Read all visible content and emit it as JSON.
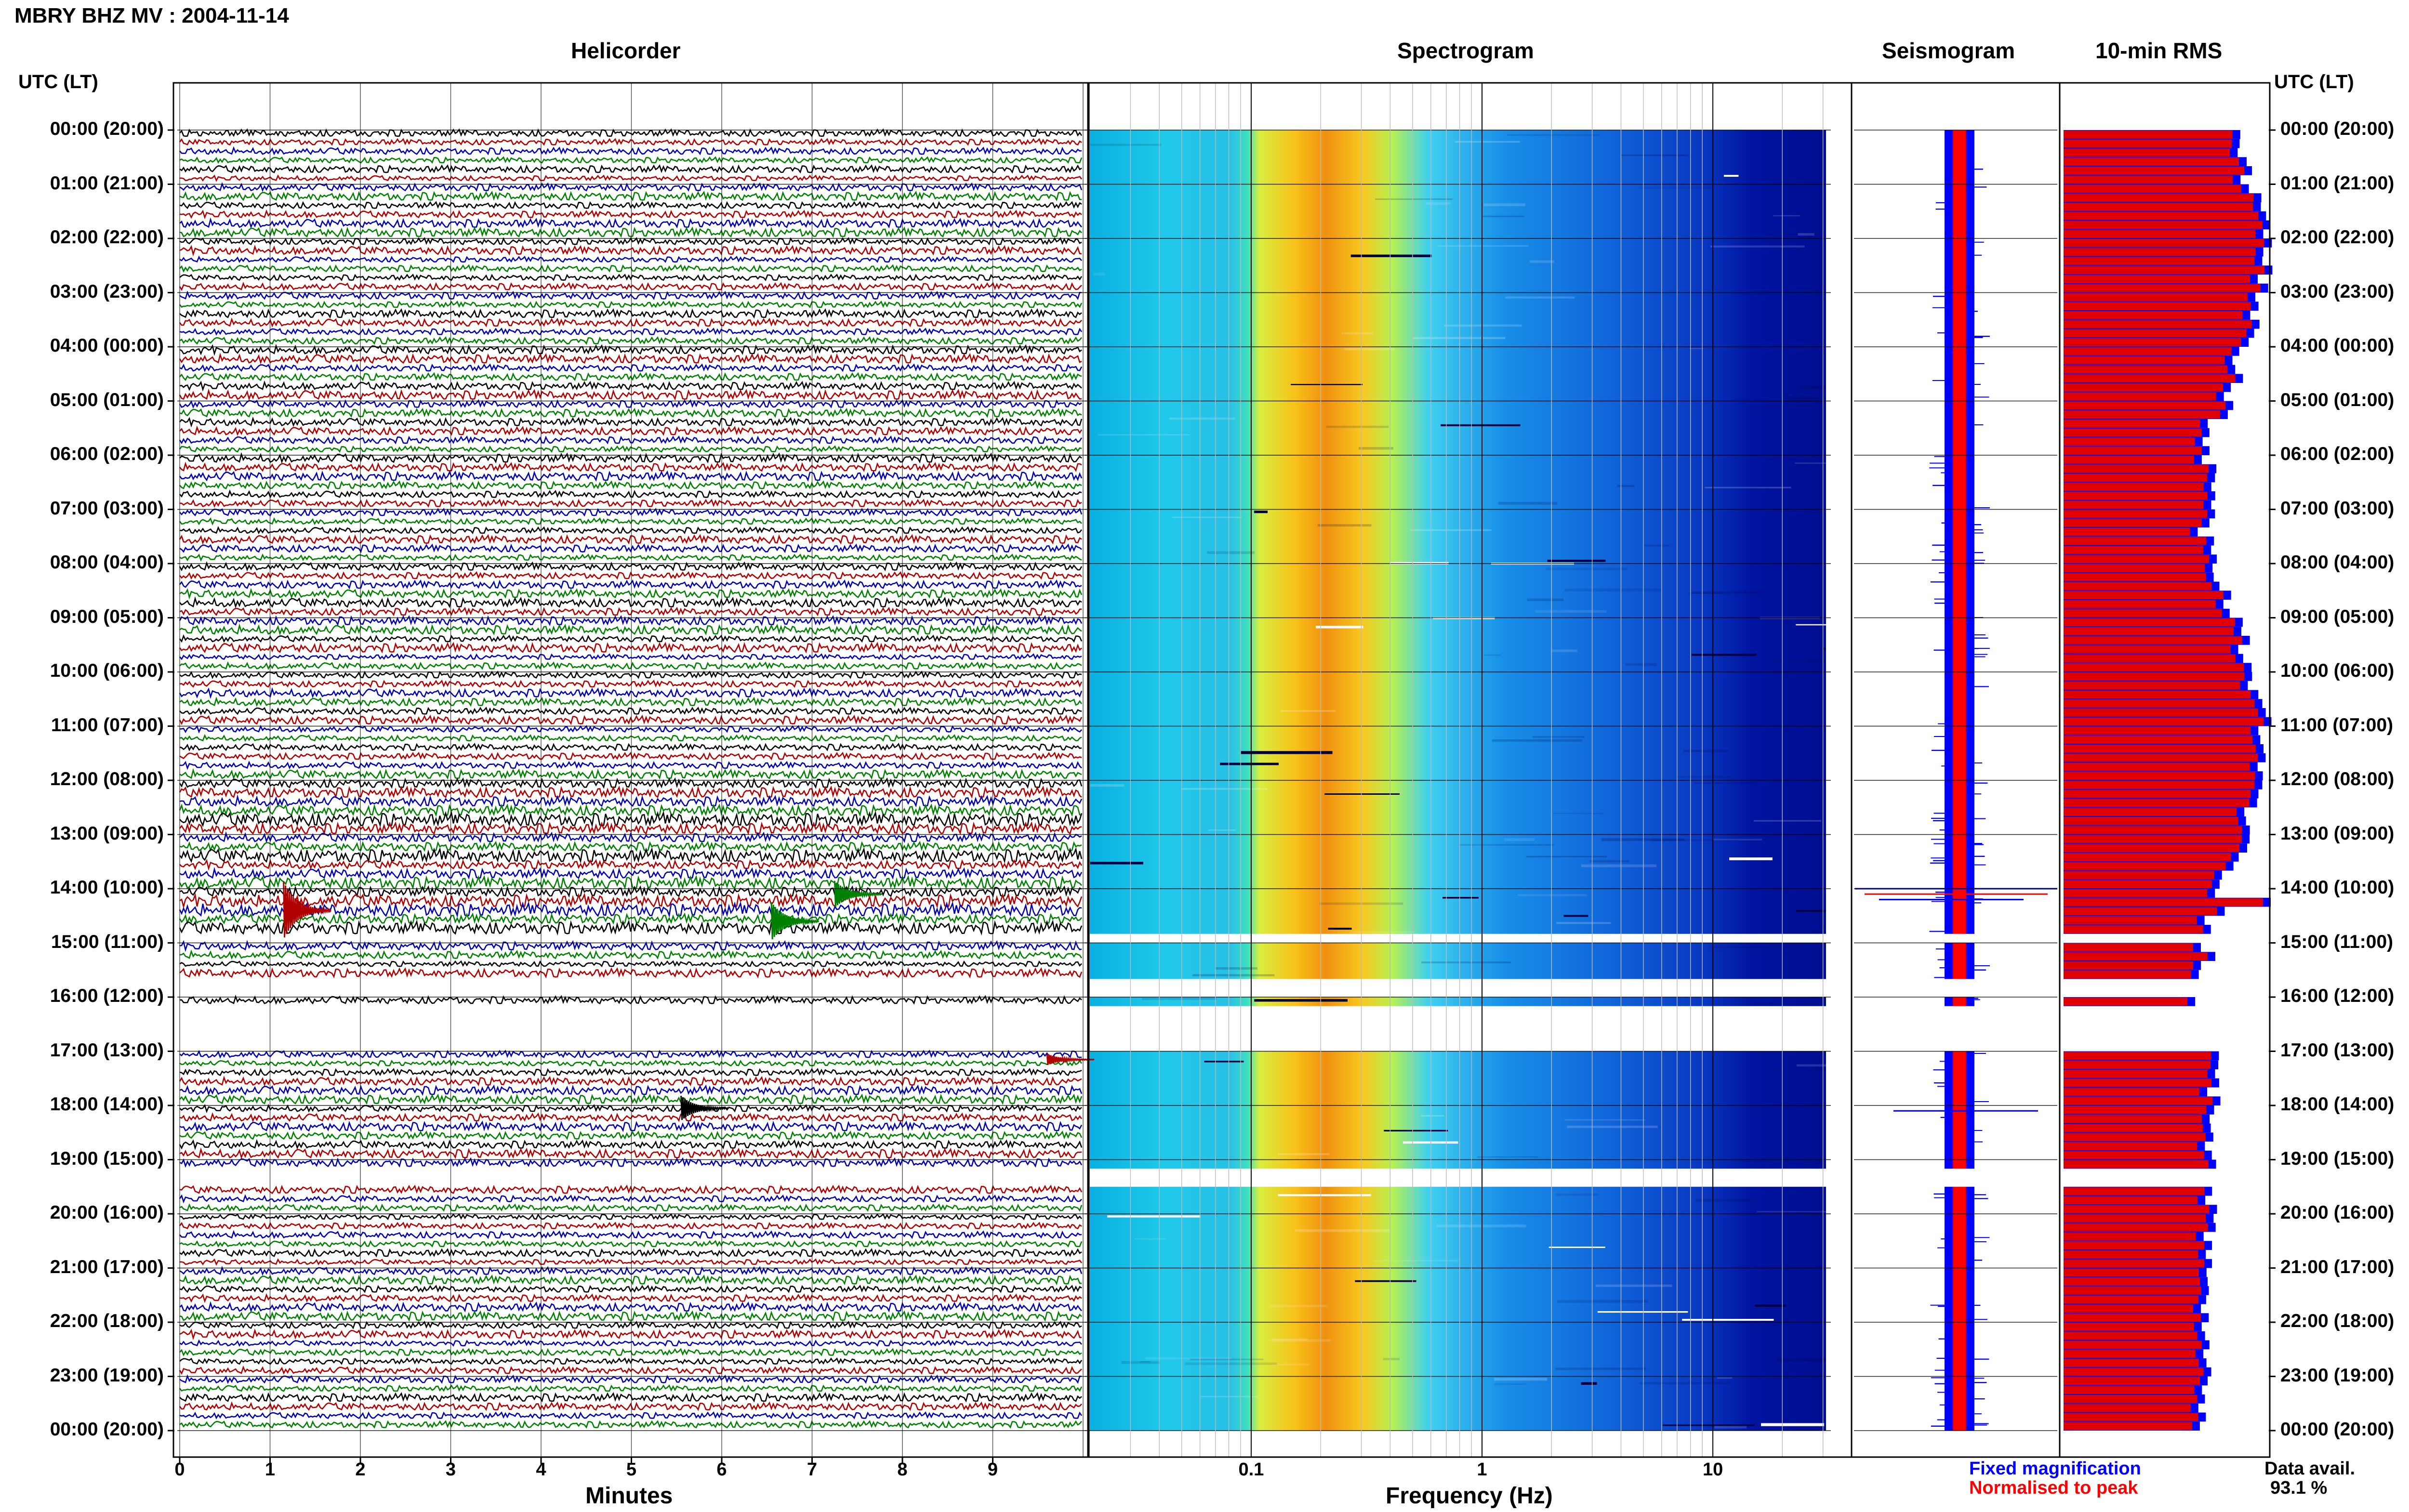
{
  "title": "MBRY BHZ MV : 2004-11-14",
  "panels": {
    "helicorder": "Helicorder",
    "spectrogram": "Spectrogram",
    "seismogram": "Seismogram",
    "rms": "10-min RMS"
  },
  "axis_labels": {
    "time_left": "UTC (LT)",
    "time_right": "UTC (LT)",
    "helicorder_x": "Minutes",
    "spectrogram_x": "Frequency (Hz)"
  },
  "legend": {
    "fixed": "Fixed magnification",
    "normalised": "Normalised to peak",
    "fixed_color": "#0000ff",
    "normalised_color": "#ff0000"
  },
  "data_avail": {
    "label": "Data avail.",
    "value": "93.1 %"
  },
  "time_ticks": [
    "00:00 (20:00)",
    "01:00 (21:00)",
    "02:00 (22:00)",
    "03:00 (23:00)",
    "04:00 (00:00)",
    "05:00 (01:00)",
    "06:00 (02:00)",
    "07:00 (03:00)",
    "08:00 (04:00)",
    "09:00 (05:00)",
    "10:00 (06:00)",
    "11:00 (07:00)",
    "12:00 (08:00)",
    "13:00 (09:00)",
    "14:00 (10:00)",
    "15:00 (11:00)",
    "16:00 (12:00)",
    "17:00 (13:00)",
    "18:00 (14:00)",
    "19:00 (15:00)",
    "20:00 (16:00)",
    "21:00 (17:00)",
    "22:00 (18:00)",
    "23:00 (19:00)",
    "00:00 (20:00)"
  ],
  "chart_data": {
    "type": "heatmap",
    "station": "MBRY BHZ MV",
    "date": "2004-11-14",
    "helicorder": {
      "x_ticks": [
        "0",
        "1",
        "2",
        "3",
        "4",
        "5",
        "6",
        "7",
        "8",
        "9"
      ],
      "x_range_minutes": [
        0,
        10
      ],
      "trace_colors": [
        "#000000",
        "#b00000",
        "#0000b0",
        "#008000"
      ],
      "data_gaps_utc": [
        [
          "14:50",
          "15:00"
        ],
        [
          "15:40",
          "16:00"
        ],
        [
          "16:10",
          "17:00"
        ],
        [
          "19:10",
          "19:30"
        ]
      ]
    },
    "spectrogram": {
      "x_scale": "log",
      "x_range_hz": [
        0.02,
        50
      ],
      "x_ticks": [
        "0.1",
        "1",
        "10"
      ],
      "colormap": "jet"
    },
    "seismogram": {
      "series": [
        "Fixed magnification",
        "Normalised to peak"
      ]
    },
    "rms": {
      "interval_minutes": 10,
      "series": [
        "Fixed magnification",
        "Normalised to peak"
      ]
    },
    "data_availability_percent": 93.1
  }
}
